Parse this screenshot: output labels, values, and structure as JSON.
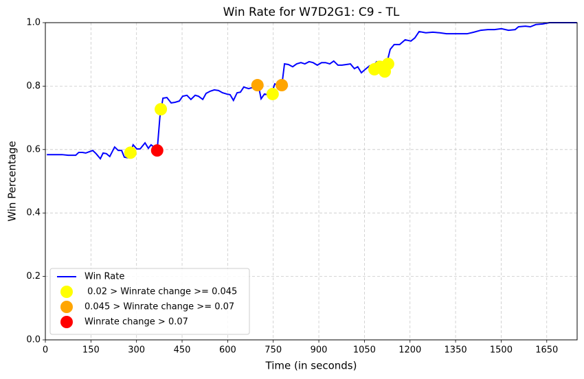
{
  "chart_data": {
    "type": "line",
    "title": "Win Rate for W7D2G1: C9 - TL",
    "x_label": "Time (in seconds)",
    "y_label": "Win Percentage",
    "xlim": [
      0,
      1750
    ],
    "ylim": [
      0,
      1
    ],
    "xticks": [
      0,
      150,
      300,
      450,
      600,
      750,
      900,
      1050,
      1200,
      1350,
      1500,
      1650
    ],
    "yticks": [
      {
        "value": 0,
        "label": "0.0"
      },
      0.2,
      0.4,
      0.6,
      0.8,
      {
        "value": 1,
        "label": "1.0"
      }
    ],
    "grid": true,
    "legend": "lower left",
    "series": [
      {
        "name": "Win Rate",
        "type": "line",
        "color": "#0000ff",
        "x": [
          5,
          55,
          75,
          100,
          110,
          122,
          133,
          156,
          167,
          181,
          190,
          201,
          212,
          228,
          240,
          251,
          260,
          271,
          280,
          289,
          301,
          312,
          328,
          339,
          348,
          362,
          368,
          377,
          387,
          400,
          414,
          427,
          441,
          452,
          466,
          479,
          493,
          504,
          518,
          529,
          543,
          556,
          570,
          583,
          597,
          608,
          619,
          631,
          642,
          653,
          669,
          687,
          701,
          710,
          721,
          732,
          746,
          755,
          766,
          778,
          787,
          800,
          814,
          827,
          841,
          854,
          868,
          881,
          895,
          909,
          922,
          936,
          949,
          963,
          976,
          990,
          1004,
          1017,
          1028,
          1040,
          1053,
          1067,
          1078,
          1090,
          1101,
          1112,
          1124,
          1135,
          1148,
          1166,
          1184,
          1203,
          1216,
          1230,
          1252,
          1275,
          1298,
          1320,
          1354,
          1388,
          1410,
          1433,
          1456,
          1478,
          1501,
          1524,
          1546,
          1557,
          1580,
          1596,
          1614,
          1637,
          1659,
          1749
        ],
        "values": [
          0.584,
          0.584,
          0.582,
          0.582,
          0.591,
          0.591,
          0.589,
          0.597,
          0.587,
          0.571,
          0.589,
          0.587,
          0.578,
          0.608,
          0.597,
          0.597,
          0.576,
          0.574,
          0.591,
          0.615,
          0.602,
          0.602,
          0.621,
          0.604,
          0.615,
          0.604,
          0.597,
          0.703,
          0.762,
          0.764,
          0.747,
          0.749,
          0.753,
          0.768,
          0.771,
          0.758,
          0.771,
          0.768,
          0.758,
          0.777,
          0.784,
          0.788,
          0.786,
          0.779,
          0.775,
          0.773,
          0.755,
          0.779,
          0.781,
          0.797,
          0.792,
          0.797,
          0.803,
          0.76,
          0.775,
          0.773,
          0.781,
          0.807,
          0.803,
          0.801,
          0.87,
          0.868,
          0.861,
          0.87,
          0.874,
          0.87,
          0.877,
          0.874,
          0.866,
          0.874,
          0.874,
          0.87,
          0.879,
          0.866,
          0.866,
          0.868,
          0.87,
          0.855,
          0.861,
          0.842,
          0.853,
          0.864,
          0.861,
          0.877,
          0.872,
          0.855,
          0.874,
          0.916,
          0.931,
          0.931,
          0.946,
          0.942,
          0.952,
          0.972,
          0.968,
          0.97,
          0.968,
          0.965,
          0.965,
          0.965,
          0.97,
          0.976,
          0.978,
          0.978,
          0.981,
          0.976,
          0.978,
          0.987,
          0.989,
          0.987,
          0.994,
          0.996,
          1,
          1
        ]
      },
      {
        "name": " 0.02 > Winrate change >= 0.045",
        "type": "scatter",
        "color": "#ffff00",
        "x": [
          280,
          380,
          748,
          1083,
          1101,
          1117,
          1128
        ],
        "values": [
          0.59,
          0.727,
          0.775,
          0.853,
          0.861,
          0.846,
          0.87
        ]
      },
      {
        "name": "0.045 > Winrate change >= 0.07",
        "type": "scatter",
        "color": "#ffa500",
        "x": [
          698,
          778
        ],
        "values": [
          0.803,
          0.803
        ]
      },
      {
        "name": "Winrate change > 0.07",
        "type": "scatter",
        "color": "#ff0000",
        "x": [
          368
        ],
        "values": [
          0.597
        ]
      }
    ]
  }
}
